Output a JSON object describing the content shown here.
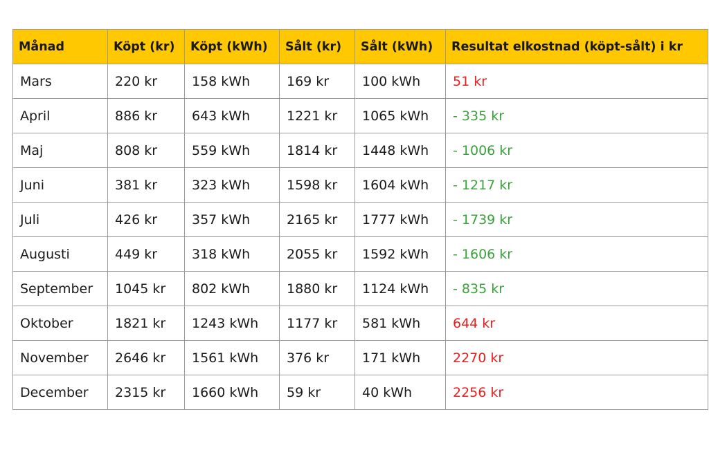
{
  "table": {
    "header": [
      "Månad",
      "Köpt (kr)",
      "Köpt (kWh)",
      "Sålt (kr)",
      "Sålt (kWh)",
      "Resultat elkostnad (köpt-sålt) i kr"
    ],
    "rows": [
      [
        "Mars",
        "220 kr",
        "158 kWh",
        "169 kr",
        "100 kWh",
        "51 kr"
      ],
      [
        "April",
        "886 kr",
        "643 kWh",
        "1221 kr",
        "1065 kWh",
        "- 335 kr"
      ],
      [
        "Maj",
        "808 kr",
        "559 kWh",
        "1814 kr",
        "1448 kWh",
        "- 1006 kr"
      ],
      [
        "Juni",
        "381 kr",
        "323 kWh",
        "1598 kr",
        "1604 kWh",
        "- 1217 kr"
      ],
      [
        "Juli",
        "426 kr",
        "357 kWh",
        "2165 kr",
        "1777 kWh",
        "- 1739 kr"
      ],
      [
        "Augusti",
        "449 kr",
        "318 kWh",
        "2055 kr",
        "1592 kWh",
        "- 1606 kr"
      ],
      [
        "September",
        "1045 kr",
        "802 kWh",
        "1880 kr",
        "1124 kWh",
        "- 835 kr"
      ],
      [
        "Oktober",
        "1821 kr",
        "1243 kWh",
        "1177 kr",
        "581 kWh",
        "644 kr"
      ],
      [
        "November",
        "2646 kr",
        "1561 kWh",
        "376 kr",
        "171 kWh",
        "2270 kr"
      ],
      [
        "December",
        "2315 kr",
        "1660 kWh",
        "59 kr",
        "40 kWh",
        "2256 kr"
      ]
    ]
  }
}
